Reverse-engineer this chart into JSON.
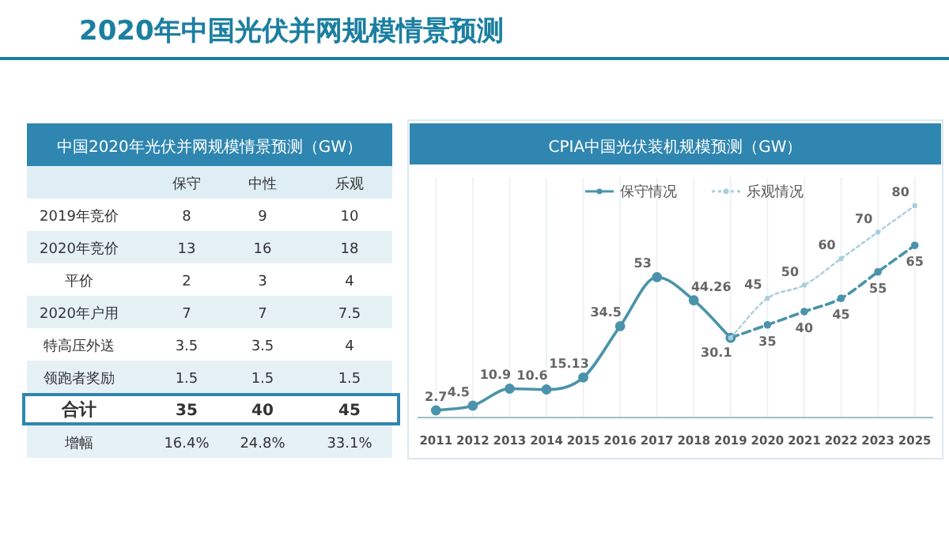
{
  "chart_data": [
    {
      "type": "other",
      "title": "2020年中国光伏并网规模情景预测",
      "subtitle": "中国2020年光伏并网规模情景预测（GW）",
      "categories": [
        "保守",
        "中性",
        "乐观"
      ],
      "y_categories": [
        "2019年竞价",
        "2020年竞价",
        "平价",
        "2020年户用",
        "特高压外送",
        "领跑者奖励",
        "合计",
        "增幅"
      ],
      "cell_labels": [
        [
          "8",
          "9",
          "10"
        ],
        [
          "13",
          "16",
          "18"
        ],
        [
          "2",
          "3",
          "4"
        ],
        [
          "7",
          "7",
          "7.5"
        ],
        [
          "3.5",
          "3.5",
          "4"
        ],
        [
          "1.5",
          "1.5",
          "1.5"
        ],
        [
          "35",
          "40",
          "45"
        ],
        [
          "16.4%",
          "24.8%",
          "33.1%"
        ]
      ]
    },
    {
      "type": "line",
      "title": "CPIA中国光伏装机规模预测（GW）",
      "legend": "top",
      "grid": "x",
      "marker": "circle",
      "categories": [
        "2011",
        "2012",
        "2013",
        "2014",
        "2015",
        "2016",
        "2017",
        "2018",
        "2019",
        "2020",
        "2021",
        "2022",
        "2023",
        "2025"
      ],
      "series": [
        {
          "name": "保守情况",
          "color": "#4a93ab",
          "line_style": "solid",
          "values": [
            2.7,
            4.5,
            10.9,
            10.6,
            15.13,
            34.5,
            53,
            44.26,
            30.1,
            null,
            null,
            null,
            null,
            null
          ],
          "value_labels": [
            "2.7",
            "4.5",
            "10.9",
            "10.6",
            "15.13",
            "34.5",
            "53",
            "44.26",
            "30.1",
            null,
            null,
            null,
            null,
            null
          ]
        },
        {
          "color": "#4a93ab",
          "line_style": "dashed",
          "values": [
            null,
            null,
            null,
            null,
            null,
            null,
            null,
            null,
            30.1,
            35,
            40,
            45,
            55,
            65
          ],
          "value_labels": [
            null,
            null,
            null,
            null,
            null,
            null,
            null,
            null,
            null,
            "35",
            "40",
            "45",
            "55",
            "65"
          ]
        },
        {
          "name": "乐观情况",
          "color": "#a9cfdc",
          "line_style": "dotted",
          "values": [
            null,
            null,
            null,
            null,
            null,
            null,
            null,
            null,
            30.1,
            45,
            50,
            60,
            70,
            80
          ],
          "value_labels": [
            null,
            null,
            null,
            null,
            null,
            null,
            null,
            null,
            null,
            "45",
            "50",
            "60",
            "70",
            "80"
          ]
        }
      ]
    }
  ]
}
